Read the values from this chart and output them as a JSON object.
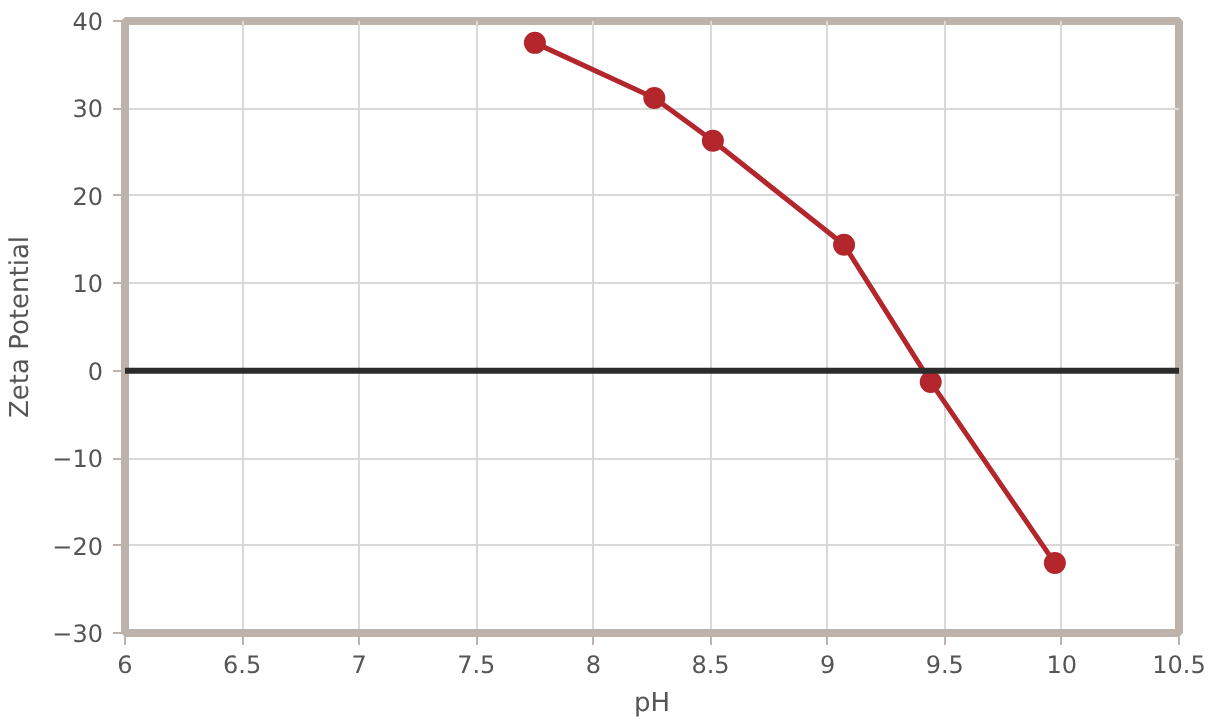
{
  "chart_data": {
    "type": "line",
    "xlabel": "pH",
    "ylabel": "Zeta Potential",
    "x": [
      7.75,
      8.26,
      8.51,
      9.07,
      9.44,
      9.97
    ],
    "series": [
      {
        "color": "#b2262c",
        "values": [
          37.5,
          31.2,
          26.3,
          14.4,
          -1.3,
          -22.0
        ]
      }
    ],
    "xlim": [
      6,
      10.5
    ],
    "ylim": [
      -30,
      40
    ],
    "xticks": [
      6,
      6.5,
      7,
      7.5,
      8,
      8.5,
      9,
      9.5,
      10,
      10.5
    ],
    "yticks": [
      -30,
      -20,
      -10,
      0,
      10,
      20,
      30,
      40
    ],
    "ref_lines": [
      {
        "axis": "y",
        "value": 0,
        "color": "#2b2b2b"
      }
    ],
    "grid": true,
    "marker": "circle",
    "line_style": "solid"
  }
}
